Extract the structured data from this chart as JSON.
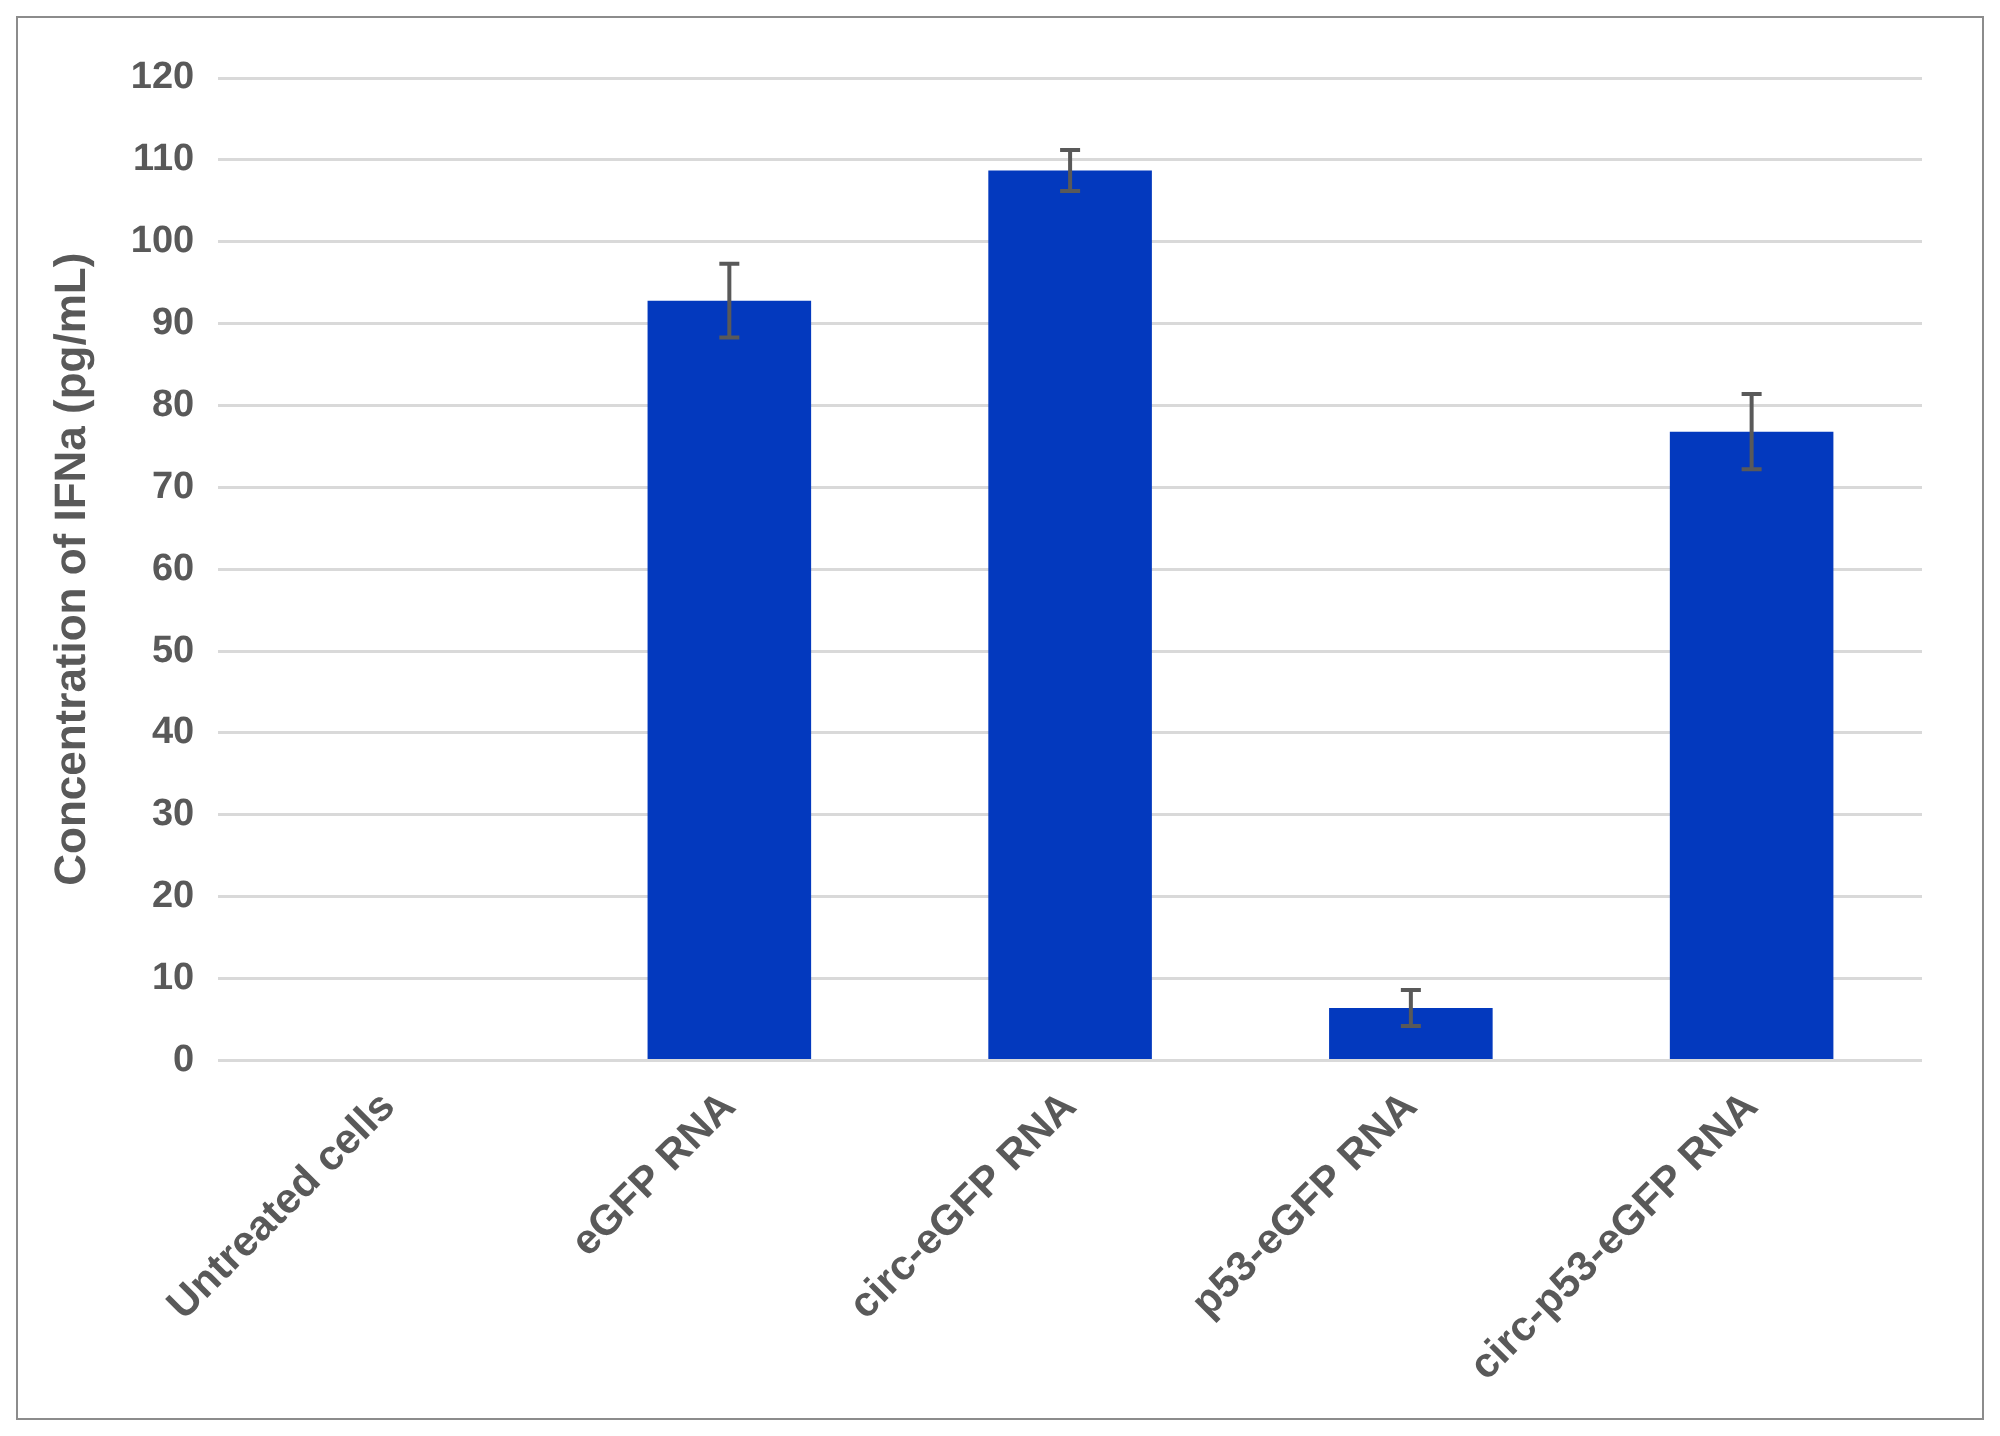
{
  "chart_data": {
    "type": "bar",
    "ylabel": "Concentration of IFNa (pg/mL)",
    "categories": [
      "Untreated cells",
      "eGFP RNA",
      "circ-eGFP RNA",
      "p53-eGFP RNA",
      "circ-p53-eGFP RNA"
    ],
    "values": [
      0,
      92.8,
      108.7,
      6.4,
      76.8
    ],
    "errors": [
      null,
      4.5,
      2.5,
      2.2,
      4.6
    ],
    "color": "#0339be",
    "ylim": [
      0,
      120
    ],
    "yticks": [
      0,
      10,
      20,
      30,
      40,
      50,
      60,
      70,
      80,
      90,
      100,
      110,
      120
    ],
    "grid": "y",
    "legend": false
  }
}
